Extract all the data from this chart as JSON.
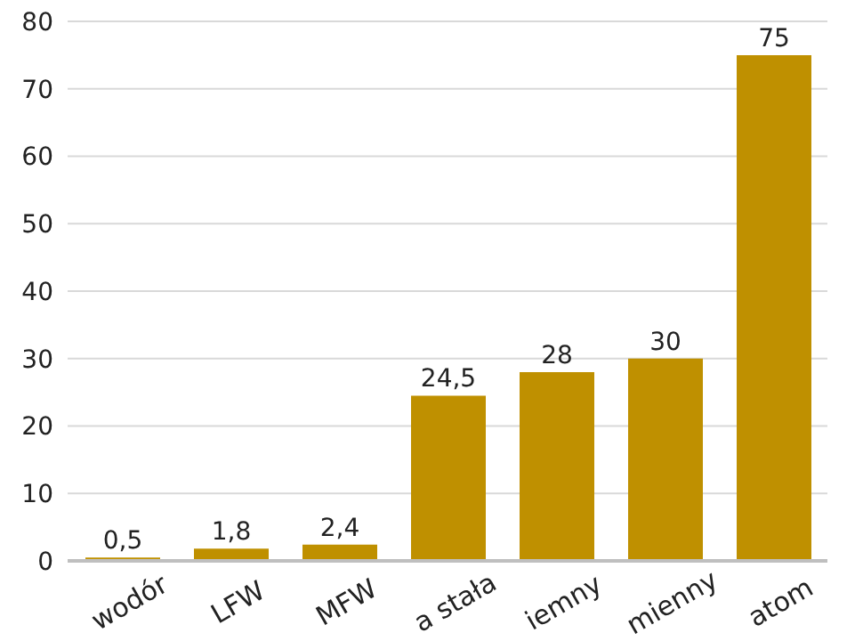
{
  "chart_data": {
    "type": "bar",
    "categories": [
      "wodór",
      "LFW",
      "MFW",
      "a stała",
      "iemny",
      "mienny",
      "atom"
    ],
    "values": [
      0.5,
      1.8,
      2.4,
      24.5,
      28,
      30,
      75
    ],
    "value_labels": [
      "0,5",
      "1,8",
      "2,4",
      "24,5",
      "28",
      "30",
      "75"
    ],
    "color": "#bf9000",
    "ylim": [
      0,
      80
    ],
    "yticks": [
      0,
      10,
      20,
      30,
      40,
      50,
      60,
      70,
      80
    ],
    "grid": "y"
  }
}
